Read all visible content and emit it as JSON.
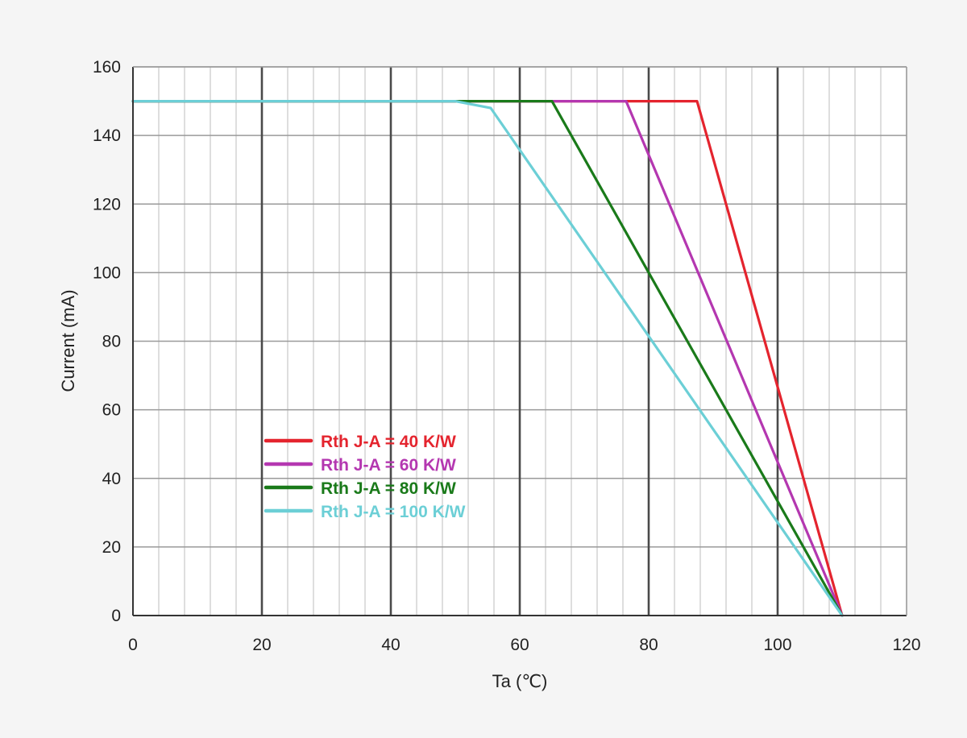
{
  "chart_data": {
    "type": "line",
    "xlabel": "Ta (℃)",
    "ylabel": "Current (mA)",
    "xlim": [
      0,
      120
    ],
    "ylim": [
      0,
      160
    ],
    "x_ticks": [
      "0",
      "20",
      "40",
      "60",
      "80",
      "100",
      "120"
    ],
    "y_ticks": [
      "0",
      "20",
      "40",
      "60",
      "80",
      "100",
      "120",
      "140",
      "160"
    ],
    "grid": true,
    "legend_position": "lower-left",
    "series": [
      {
        "name": "Rth J-A = 40 K/W",
        "color": "#e4242e",
        "points": [
          [
            0,
            150
          ],
          [
            87.5,
            150
          ],
          [
            110,
            0
          ]
        ]
      },
      {
        "name": "Rth J-A = 60 K/W",
        "color": "#b437b0",
        "points": [
          [
            0,
            150
          ],
          [
            76.5,
            150
          ],
          [
            110,
            0
          ]
        ]
      },
      {
        "name": "Rth J-A = 80 K/W",
        "color": "#1a7a1a",
        "points": [
          [
            0,
            150
          ],
          [
            65,
            150
          ],
          [
            110,
            0
          ]
        ]
      },
      {
        "name": "Rth J-A = 100 K/W",
        "color": "#6ccfd6",
        "points": [
          [
            0,
            150
          ],
          [
            50,
            150
          ],
          [
            55.5,
            148
          ],
          [
            110,
            0
          ]
        ]
      }
    ]
  }
}
